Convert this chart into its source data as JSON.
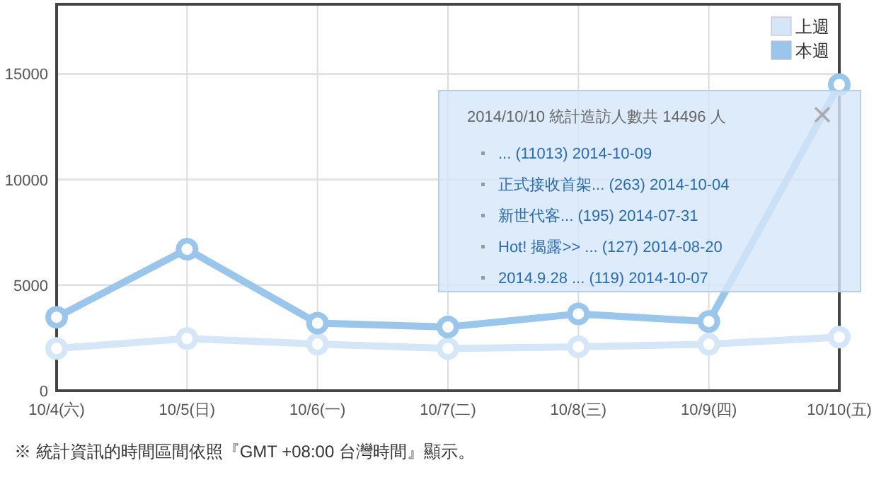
{
  "chart_data": {
    "type": "line",
    "categories": [
      "10/4(六)",
      "10/5(日)",
      "10/6(一)",
      "10/7(二)",
      "10/8(三)",
      "10/9(四)",
      "10/10(五)"
    ],
    "series": [
      {
        "name": "上週",
        "color": "#d4e6f7",
        "values": [
          2000,
          2470,
          2210,
          2000,
          2080,
          2200,
          2540
        ]
      },
      {
        "name": "本週",
        "color": "#9ac6ec",
        "values": [
          3480,
          6700,
          3200,
          3020,
          3640,
          3280,
          14496
        ]
      }
    ],
    "ylim": [
      0,
      18300
    ],
    "yticks": [
      0,
      5000,
      10000,
      15000
    ],
    "grid": true,
    "legend": "top right",
    "marker": "circle",
    "line_style": "solid",
    "annotations": [
      "2014/10/10 統計造訪人數共 14496 人",
      "... (11013) 2014-10-09",
      "正式接收首架... (263) 2014-10-04",
      "新世代客... (195) 2014-07-31",
      "Hot! 揭露>> ... (127) 2014-08-20",
      "2014.9.28 ... (119) 2014-10-07",
      "※ 統計資訊的時間區間依照『GMT +08:00 台灣時間』顯示。"
    ]
  }
}
